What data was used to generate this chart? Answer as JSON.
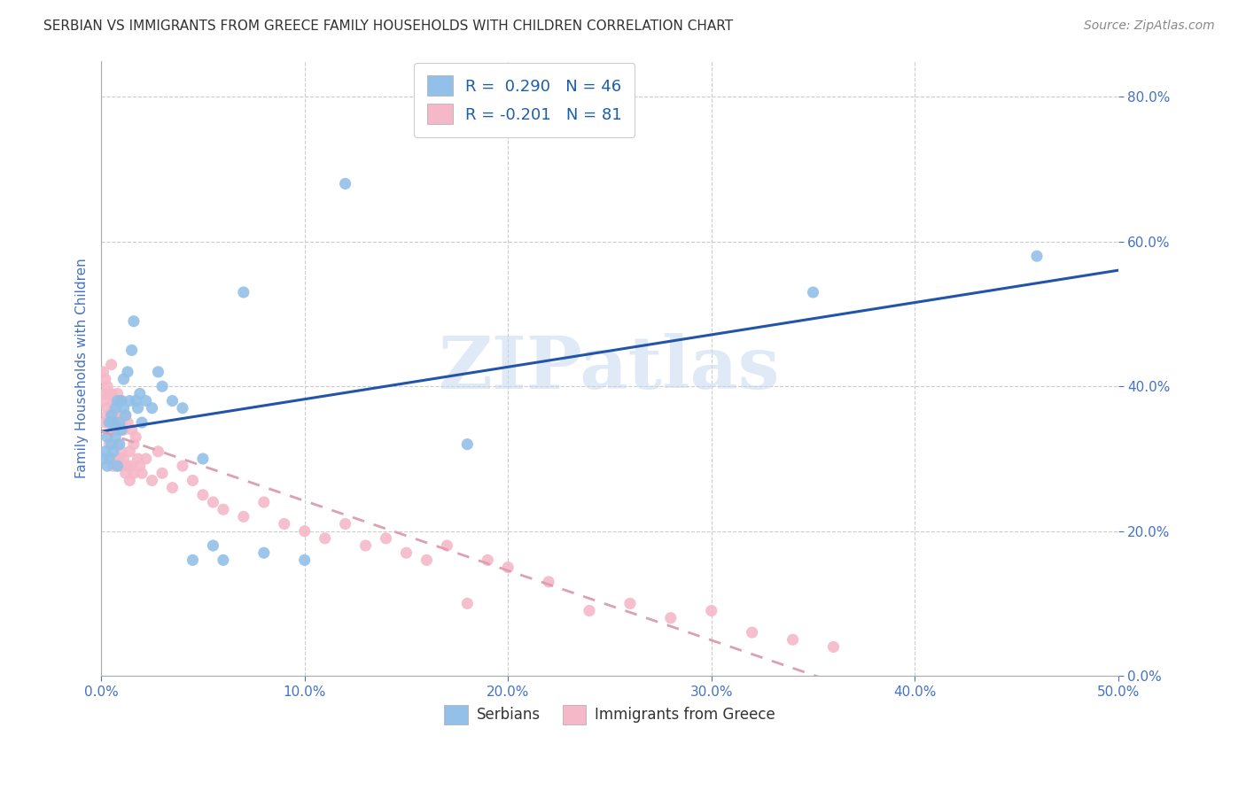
{
  "title": "SERBIAN VS IMMIGRANTS FROM GREECE FAMILY HOUSEHOLDS WITH CHILDREN CORRELATION CHART",
  "source": "Source: ZipAtlas.com",
  "ylabel": "Family Households with Children",
  "watermark": "ZIPatlas",
  "xlim": [
    0.0,
    0.5
  ],
  "ylim": [
    0.0,
    0.85
  ],
  "xticks": [
    0.0,
    0.1,
    0.2,
    0.3,
    0.4,
    0.5
  ],
  "yticks": [
    0.0,
    0.2,
    0.4,
    0.6,
    0.8
  ],
  "legend_labels": [
    "Serbians",
    "Immigrants from Greece"
  ],
  "serbian_R": 0.29,
  "serbian_N": 46,
  "greek_R": -0.201,
  "greek_N": 81,
  "serbian_color": "#92C0E8",
  "greek_color": "#F5B8C8",
  "serbian_line_color": "#2255AA",
  "greek_line_color": "#DDA0B0",
  "grid_color": "#CCCCCC",
  "tick_color": "#4472C4",
  "serbian_scatter_x": [
    0.001,
    0.002,
    0.003,
    0.003,
    0.004,
    0.004,
    0.005,
    0.005,
    0.006,
    0.006,
    0.007,
    0.007,
    0.008,
    0.008,
    0.009,
    0.009,
    0.01,
    0.01,
    0.011,
    0.011,
    0.012,
    0.013,
    0.014,
    0.015,
    0.016,
    0.017,
    0.018,
    0.019,
    0.02,
    0.022,
    0.025,
    0.028,
    0.03,
    0.035,
    0.04,
    0.045,
    0.05,
    0.055,
    0.06,
    0.07,
    0.08,
    0.1,
    0.12,
    0.18,
    0.35,
    0.46
  ],
  "serbian_scatter_y": [
    0.3,
    0.31,
    0.29,
    0.33,
    0.3,
    0.35,
    0.32,
    0.36,
    0.31,
    0.35,
    0.37,
    0.33,
    0.38,
    0.29,
    0.35,
    0.32,
    0.38,
    0.34,
    0.41,
    0.37,
    0.36,
    0.42,
    0.38,
    0.45,
    0.49,
    0.38,
    0.37,
    0.39,
    0.35,
    0.38,
    0.37,
    0.42,
    0.4,
    0.38,
    0.37,
    0.16,
    0.3,
    0.18,
    0.16,
    0.53,
    0.17,
    0.16,
    0.68,
    0.32,
    0.53,
    0.58
  ],
  "greek_scatter_x": [
    0.001,
    0.001,
    0.002,
    0.002,
    0.002,
    0.003,
    0.003,
    0.003,
    0.004,
    0.004,
    0.004,
    0.005,
    0.005,
    0.005,
    0.005,
    0.006,
    0.006,
    0.006,
    0.007,
    0.007,
    0.007,
    0.007,
    0.008,
    0.008,
    0.008,
    0.008,
    0.009,
    0.009,
    0.009,
    0.01,
    0.01,
    0.01,
    0.01,
    0.011,
    0.011,
    0.012,
    0.012,
    0.013,
    0.013,
    0.014,
    0.014,
    0.015,
    0.015,
    0.016,
    0.016,
    0.017,
    0.018,
    0.019,
    0.02,
    0.022,
    0.025,
    0.028,
    0.03,
    0.035,
    0.04,
    0.045,
    0.05,
    0.055,
    0.06,
    0.07,
    0.08,
    0.09,
    0.1,
    0.11,
    0.12,
    0.13,
    0.14,
    0.15,
    0.16,
    0.17,
    0.18,
    0.19,
    0.2,
    0.22,
    0.24,
    0.26,
    0.28,
    0.3,
    0.32,
    0.34,
    0.36
  ],
  "greek_scatter_y": [
    0.38,
    0.42,
    0.39,
    0.35,
    0.41,
    0.37,
    0.36,
    0.4,
    0.39,
    0.35,
    0.32,
    0.39,
    0.35,
    0.3,
    0.43,
    0.37,
    0.38,
    0.29,
    0.36,
    0.34,
    0.3,
    0.38,
    0.35,
    0.32,
    0.29,
    0.39,
    0.36,
    0.3,
    0.34,
    0.38,
    0.31,
    0.35,
    0.29,
    0.34,
    0.3,
    0.36,
    0.28,
    0.35,
    0.29,
    0.31,
    0.27,
    0.34,
    0.29,
    0.32,
    0.28,
    0.33,
    0.3,
    0.29,
    0.28,
    0.3,
    0.27,
    0.31,
    0.28,
    0.26,
    0.29,
    0.27,
    0.25,
    0.24,
    0.23,
    0.22,
    0.24,
    0.21,
    0.2,
    0.19,
    0.21,
    0.18,
    0.19,
    0.17,
    0.16,
    0.18,
    0.1,
    0.16,
    0.15,
    0.13,
    0.09,
    0.1,
    0.08,
    0.09,
    0.06,
    0.05,
    0.04
  ]
}
